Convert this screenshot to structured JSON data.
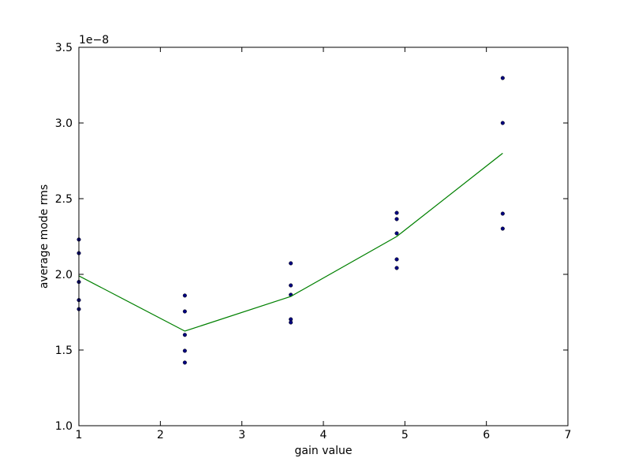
{
  "chart_data": {
    "type": "scatter",
    "xlabel": "gain value",
    "ylabel": "average mode rms",
    "y_offset_text": "1e−8",
    "xlim": [
      1,
      7
    ],
    "xticks": [
      1,
      2,
      3,
      4,
      5,
      6,
      7
    ],
    "ylim": [
      1.0,
      3.5
    ],
    "yticks": [
      {
        "value": 1.0,
        "label": "1.0"
      },
      {
        "value": 1.5,
        "label": "1.5"
      },
      {
        "value": 2.0,
        "label": "2.0"
      },
      {
        "value": 2.5,
        "label": "2.5"
      },
      {
        "value": 3.0,
        "label": "3.0"
      },
      {
        "value": 3.5,
        "label": "3.5"
      }
    ],
    "series": [
      {
        "type": "scatter",
        "color": "#00007f",
        "x": [
          1,
          1,
          1,
          1,
          1,
          2.3,
          2.3,
          2.3,
          2.3,
          2.3,
          3.6,
          3.6,
          3.6,
          3.6,
          3.6,
          4.9,
          4.9,
          4.9,
          4.9,
          4.9,
          6.2,
          6.2,
          6.2,
          6.2
        ],
        "values": [
          2.23,
          2.14,
          1.95,
          1.83,
          1.77,
          1.86,
          1.755,
          1.6,
          1.495,
          1.417,
          2.073,
          1.927,
          1.865,
          1.703,
          1.682,
          2.406,
          2.365,
          2.271,
          2.099,
          2.042,
          3.297,
          3.0,
          2.401,
          2.302
        ]
      },
      {
        "type": "line",
        "color": "#008000",
        "x": [
          1,
          2.3,
          3.6,
          4.9,
          6.2
        ],
        "values": [
          1.99,
          1.625,
          1.854,
          2.25,
          2.8
        ]
      }
    ]
  }
}
